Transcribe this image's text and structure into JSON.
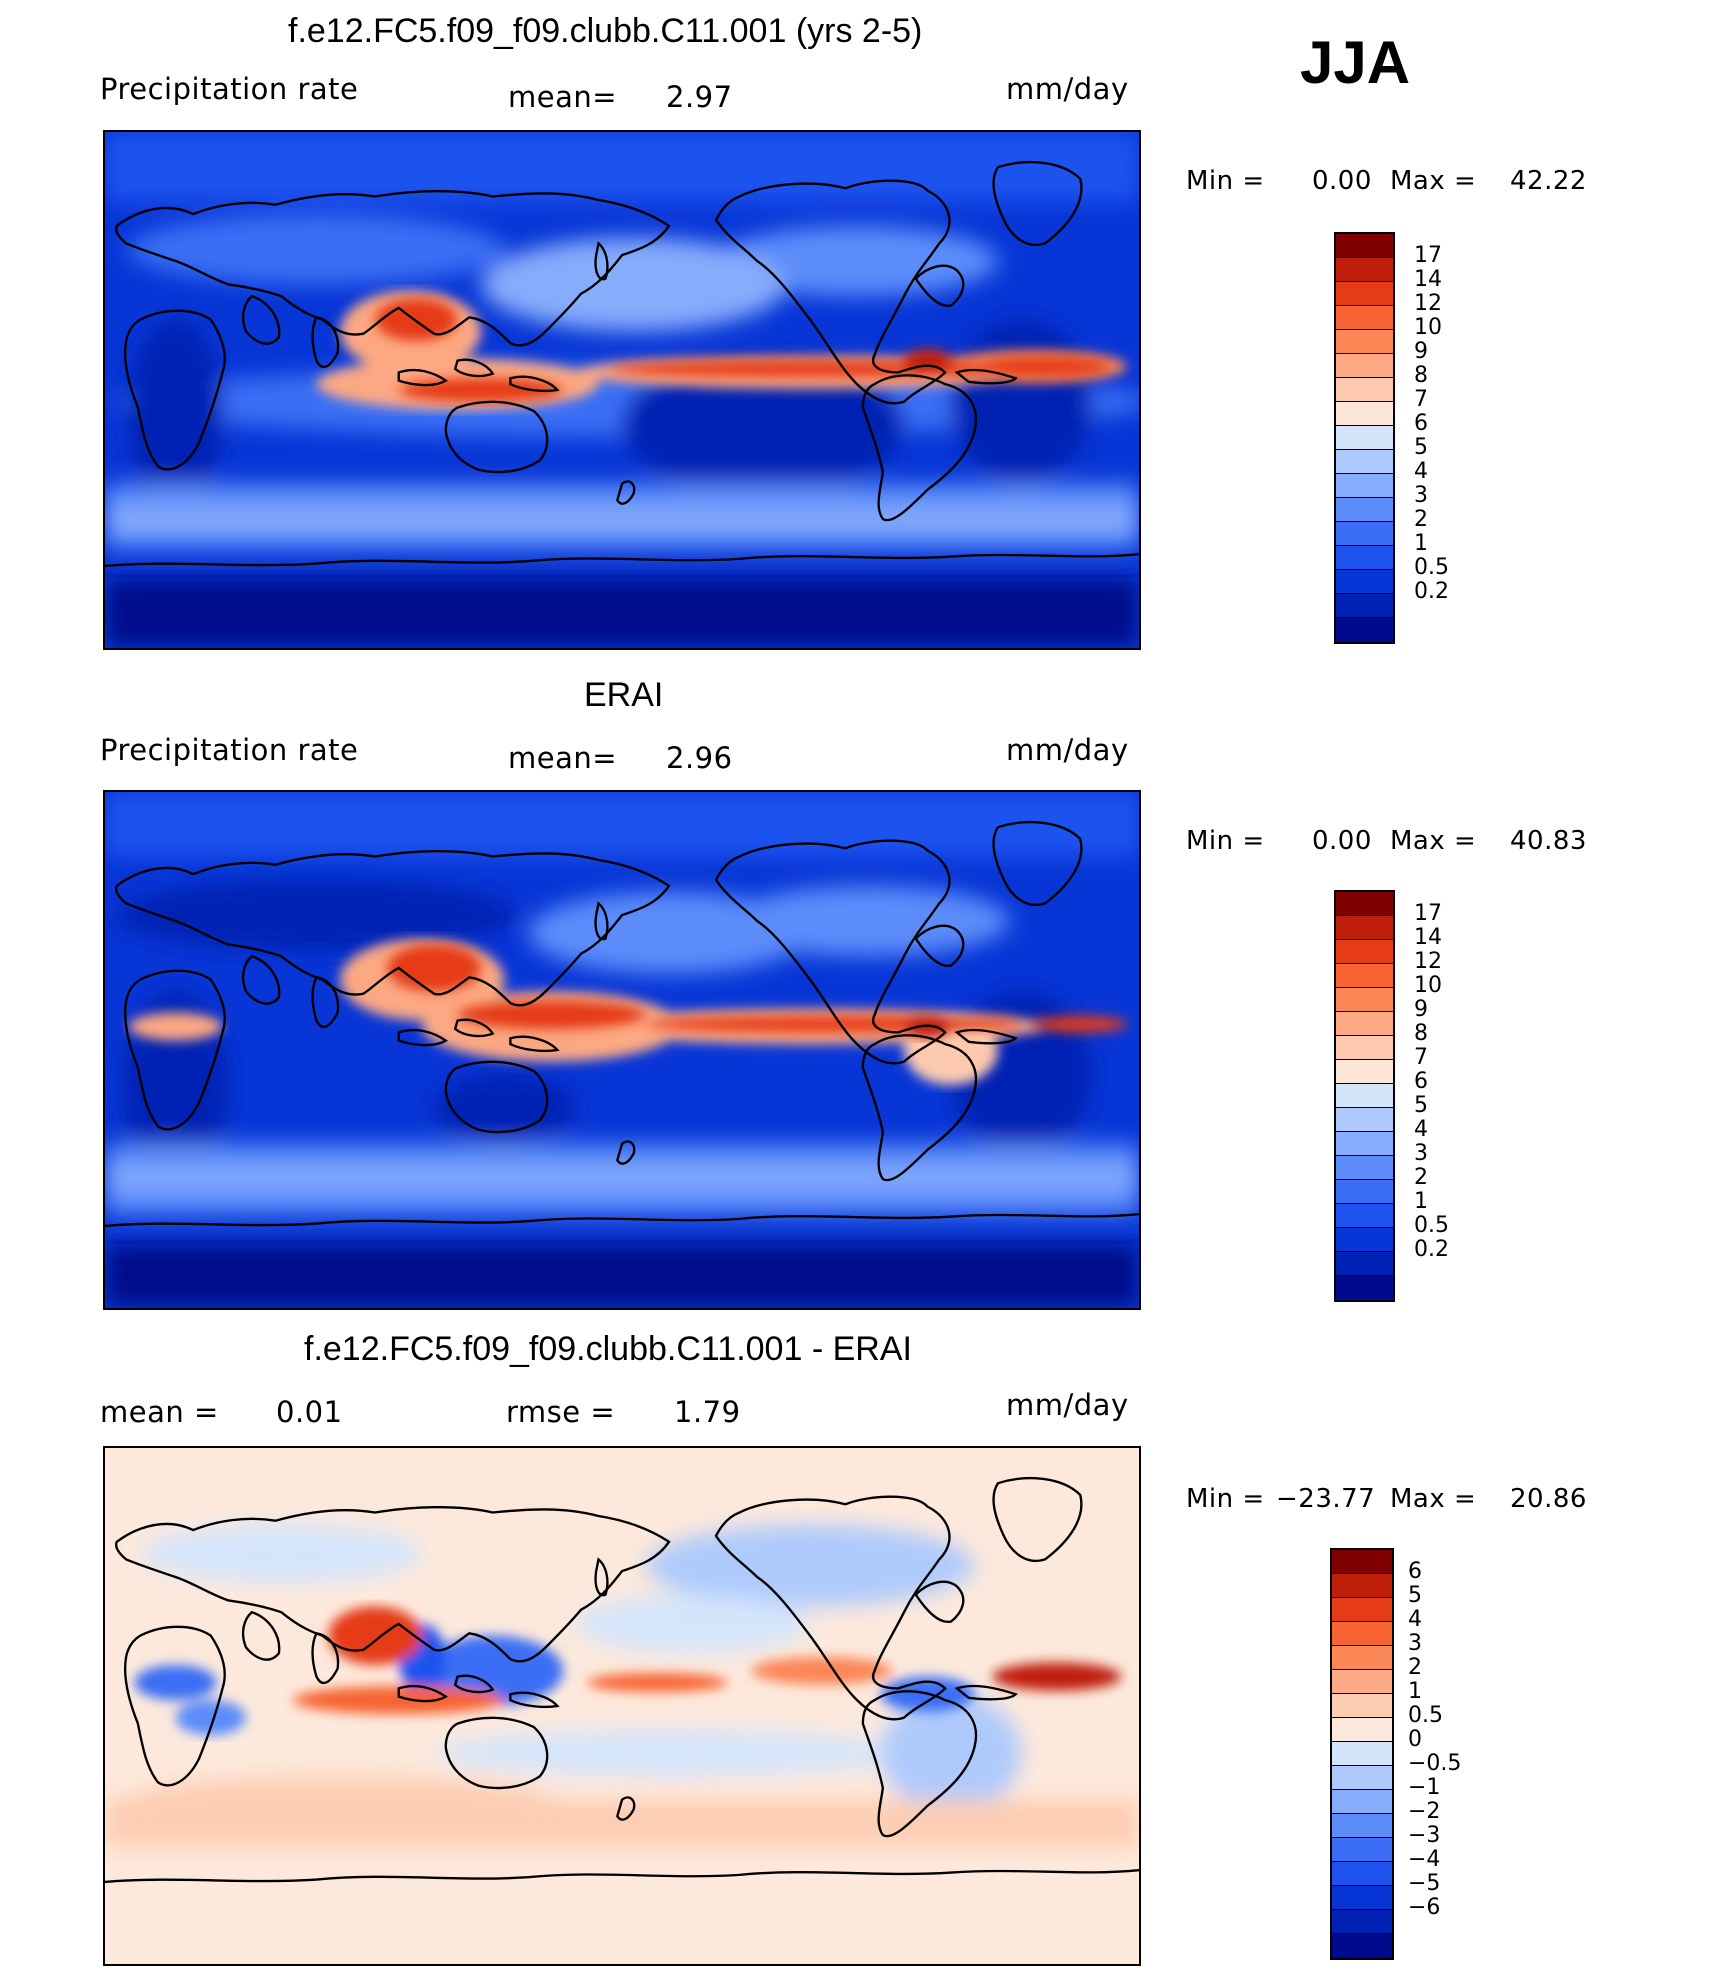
{
  "season": "JJA",
  "colors": {
    "precip": [
      "#000a8c",
      "#0022b4",
      "#0836d6",
      "#1f52ef",
      "#3b6ef5",
      "#5c8cfa",
      "#86acfc",
      "#aecafd",
      "#d4e5fb",
      "#fde6d7",
      "#fdcab0",
      "#fca883",
      "#fb8656",
      "#f76332",
      "#e53b17",
      "#bf1e0a",
      "#800000"
    ],
    "diff": [
      "#000a8c",
      "#0022b4",
      "#0836d6",
      "#1f52ef",
      "#3b6ef5",
      "#5c8cfa",
      "#86acfc",
      "#aecafd",
      "#d4e5fb",
      "#fde9dc",
      "#fdcdb2",
      "#fcaa86",
      "#fb8656",
      "#f76332",
      "#e53b17",
      "#bf1e0a",
      "#800000"
    ]
  },
  "panels": [
    {
      "title": "f.e12.FC5.f09_f09.clubb.C11.001 (yrs 2-5)",
      "left_label": "Precipitation  rate",
      "center_label": "mean=",
      "center_value": "2.97",
      "units": "mm/day",
      "min_label": "Min  =",
      "min_value": "0.00",
      "max_label": "Max  =",
      "max_value": "42.22",
      "levels": [
        "0.2",
        "0.5",
        "1",
        "2",
        "3",
        "4",
        "5",
        "6",
        "7",
        "8",
        "9",
        "10",
        "12",
        "14",
        "17"
      ]
    },
    {
      "title": "ERAI",
      "left_label": "Precipitation  rate",
      "center_label": "mean=",
      "center_value": "2.96",
      "units": "mm/day",
      "min_label": "Min  =",
      "min_value": "0.00",
      "max_label": "Max  =",
      "max_value": "40.83",
      "levels": [
        "0.2",
        "0.5",
        "1",
        "2",
        "3",
        "4",
        "5",
        "6",
        "7",
        "8",
        "9",
        "10",
        "12",
        "14",
        "17"
      ]
    },
    {
      "title": "f.e12.FC5.f09_f09.clubb.C11.001 - ERAI",
      "left_label": "mean  =",
      "left_value": "0.01",
      "center_label": "rmse  =",
      "center_value": "1.79",
      "units": "mm/day",
      "min_label": "Min  =",
      "min_value": "−23.77",
      "max_label": "Max  =",
      "max_value": "20.86",
      "levels": [
        "−6",
        "−5",
        "−4",
        "−3",
        "−2",
        "−1",
        "−0.5",
        "0",
        "0.5",
        "1",
        "2",
        "3",
        "4",
        "5",
        "6"
      ]
    }
  ]
}
